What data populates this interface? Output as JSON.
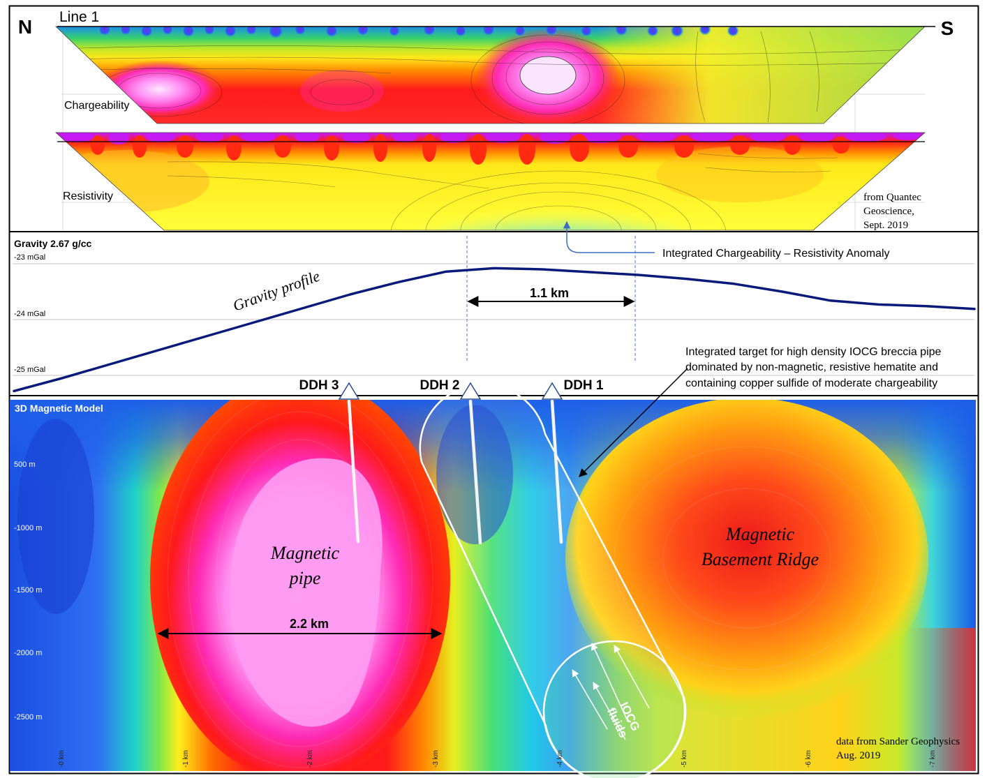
{
  "top_panel": {
    "line_label": "Line 1",
    "north_label": "N",
    "south_label": "S",
    "chargeability_label": "Chargeability",
    "resistivity_label": "Resistivity",
    "source_line1": "from Quantec",
    "source_line2": "Geoscience,",
    "source_line3": "Sept. 2019"
  },
  "gravity_panel": {
    "title": "Gravity 2.67 g/cc",
    "tick_labels": [
      "-23 mGal",
      "-24 mGal",
      "-25 mGal"
    ],
    "profile_label": "Gravity profile",
    "width_label": "1.1 km",
    "anomaly_label": "Integrated Chargeability – Resistivity Anomaly",
    "target_note_lines": [
      "Integrated target for high density IOCG breccia pipe",
      "dominated by non-magnetic, resistive hematite and",
      "containing copper sulfide of moderate chargeability"
    ],
    "profile_values_mgal": [
      -25.28,
      -25.05,
      -24.8,
      -24.55,
      -24.3,
      -24.05,
      -23.8,
      -23.55,
      -23.33,
      -23.14,
      -23.08,
      -23.1,
      -23.15,
      -23.2,
      -23.27,
      -23.36,
      -23.5,
      -23.66,
      -23.73,
      -23.76,
      -23.81
    ],
    "profile_color": "#0a1a7a"
  },
  "drillholes": [
    {
      "name": "DDH 3"
    },
    {
      "name": "DDH 2"
    },
    {
      "name": "DDH 1"
    }
  ],
  "mag_panel": {
    "title": "3D Magnetic Model",
    "depth_labels": [
      "500 m",
      "-1000 m",
      "-1500 m",
      "-2000 m",
      "-2500 m"
    ],
    "km_labels": [
      "-0 km",
      "-1 km",
      "-2 km",
      "-3 km",
      "-4 km",
      "-5 km",
      "-6 km",
      "-7 km"
    ],
    "pipe_label_1": "Magnetic",
    "pipe_label_2": "pipe",
    "ridge_label_1": "Magnetic",
    "ridge_label_2": "Basement Ridge",
    "width_label": "2.2 km",
    "fluids_label_1": "IOCG",
    "fluids_label_2": "fluids",
    "source_line1": "data from Sander Geophysics",
    "source_line2": "Aug. 2019"
  }
}
